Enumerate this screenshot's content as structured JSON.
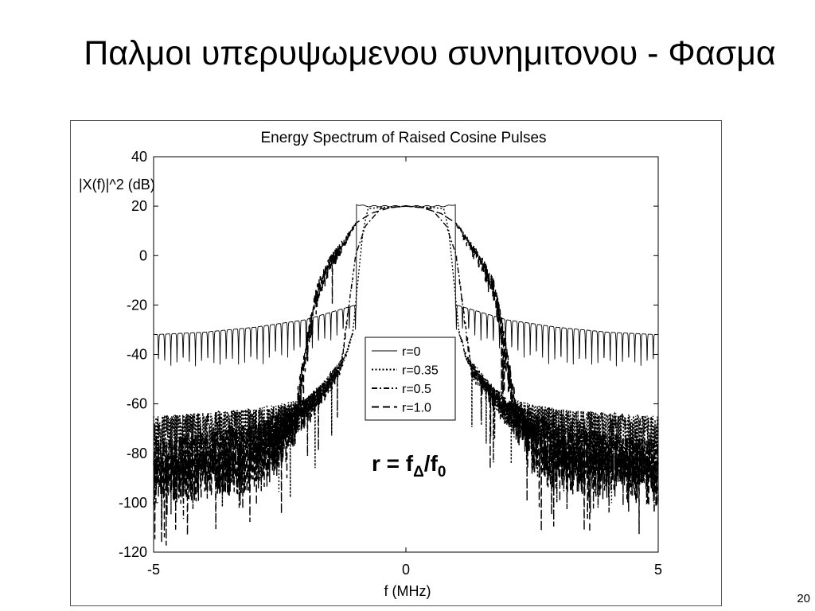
{
  "slide": {
    "title": "Παλμοι υπερυψωμενου συνημιτονου - Φασμα",
    "number": "20"
  },
  "annotation": {
    "r": "r = f",
    "sub_delta": "Δ",
    "slash": "/f",
    "sub_zero": "0"
  },
  "chart_data": {
    "type": "line",
    "title": "Energy Spectrum of Raised Cosine Pulses",
    "xlabel": "f (MHz)",
    "ylabel": "|X(f)|^2 (dB)",
    "xlim": [
      -5,
      5
    ],
    "ylim": [
      -120,
      40
    ],
    "xticks": [
      -5,
      0,
      5
    ],
    "yticks": [
      40,
      20,
      0,
      -20,
      -40,
      -60,
      -80,
      -100,
      -120
    ],
    "grid": false,
    "legend_position": "center",
    "peak_db": 20,
    "series": [
      {
        "name": "r=0",
        "line_style": "solid",
        "edge_mhz": 1.0,
        "sidelobe_envelope_db": [
          [
            1.0,
            -20
          ],
          [
            1.5,
            -23
          ],
          [
            2.0,
            -26
          ],
          [
            3.0,
            -29
          ],
          [
            4.0,
            -31
          ],
          [
            5.0,
            -32
          ]
        ],
        "null_depth_db": [
          [
            1.0,
            -30
          ],
          [
            2.0,
            -40
          ],
          [
            3.0,
            -45
          ],
          [
            5.0,
            -45
          ]
        ]
      },
      {
        "name": "r=0.35",
        "line_style": "dotted",
        "shoulder_points": [
          [
            0,
            20
          ],
          [
            0.5,
            19.5
          ],
          [
            0.75,
            19
          ],
          [
            0.85,
            10
          ],
          [
            0.95,
            -10
          ],
          [
            1.05,
            -30
          ],
          [
            1.2,
            -40
          ],
          [
            1.6,
            -50
          ],
          [
            2.0,
            -58
          ],
          [
            3.0,
            -62
          ],
          [
            5.0,
            -65
          ]
        ]
      },
      {
        "name": "r=0.5",
        "line_style": "dash-dot",
        "shoulder_points": [
          [
            0,
            20
          ],
          [
            0.5,
            19
          ],
          [
            0.8,
            12
          ],
          [
            1.0,
            0
          ],
          [
            1.1,
            -15
          ],
          [
            1.3,
            -45
          ],
          [
            2.0,
            -58
          ],
          [
            3.0,
            -68
          ],
          [
            5.0,
            -75
          ]
        ]
      },
      {
        "name": "r=1.0",
        "line_style": "dashed",
        "shoulder_points": [
          [
            0,
            20
          ],
          [
            0.3,
            19.5
          ],
          [
            0.7,
            17
          ],
          [
            1.0,
            13
          ],
          [
            1.5,
            0
          ],
          [
            1.75,
            -10
          ],
          [
            1.9,
            -25
          ],
          [
            2.2,
            -60
          ],
          [
            2.8,
            -75
          ],
          [
            5.0,
            -82
          ]
        ]
      }
    ]
  }
}
